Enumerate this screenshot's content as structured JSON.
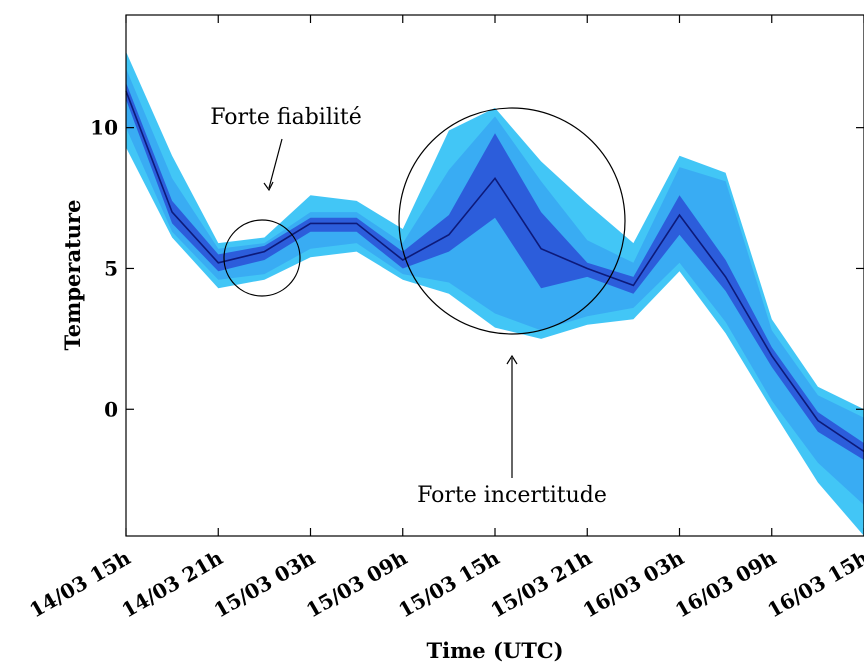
{
  "chart_data": {
    "type": "line",
    "title": "",
    "xlabel": "Time (UTC)",
    "ylabel": "Temperature",
    "categories": [
      "14/03 15h",
      "14/03 18h",
      "14/03 21h",
      "15/03 00h",
      "15/03 03h",
      "15/03 06h",
      "15/03 09h",
      "15/03 12h",
      "15/03 15h",
      "15/03 18h",
      "15/03 21h",
      "16/03 00h",
      "16/03 03h",
      "16/03 06h",
      "16/03 09h",
      "16/03 12h",
      "16/03 15h"
    ],
    "x_tick_labels": [
      "14/03 15h",
      "14/03 21h",
      "15/03 03h",
      "15/03 09h",
      "15/03 15h",
      "15/03 21h",
      "16/03 03h",
      "16/03 09h",
      "16/03 15h"
    ],
    "y_ticks": [
      0,
      5,
      10
    ],
    "ylim": [
      -4.5,
      14
    ],
    "grid": false,
    "series": [
      {
        "role": "mean",
        "values": [
          11.3,
          7.0,
          5.2,
          5.6,
          6.6,
          6.6,
          5.3,
          6.2,
          8.2,
          5.7,
          5.0,
          4.4,
          6.9,
          4.7,
          1.9,
          -0.4,
          -1.5
        ]
      },
      {
        "role": "core_upper",
        "values": [
          11.6,
          7.4,
          5.5,
          5.8,
          6.8,
          6.8,
          5.6,
          6.9,
          9.8,
          7.0,
          5.2,
          4.7,
          7.6,
          5.3,
          2.2,
          -0.1,
          -1.2
        ]
      },
      {
        "role": "core_lower",
        "values": [
          11.0,
          6.6,
          4.9,
          5.3,
          6.3,
          6.3,
          5.0,
          5.6,
          6.8,
          4.3,
          4.7,
          4.1,
          6.2,
          4.2,
          1.5,
          -0.8,
          -1.8
        ]
      },
      {
        "role": "mid_upper",
        "values": [
          12.1,
          8.2,
          5.7,
          5.9,
          7.0,
          7.0,
          5.9,
          8.5,
          10.4,
          8.1,
          6.0,
          5.2,
          8.6,
          8.1,
          2.8,
          0.5,
          -0.3
        ]
      },
      {
        "role": "mid_lower",
        "values": [
          10.0,
          6.3,
          4.6,
          4.8,
          5.7,
          5.9,
          4.8,
          4.5,
          3.4,
          2.8,
          3.3,
          3.6,
          5.2,
          3.1,
          0.3,
          -1.9,
          -3.4
        ]
      },
      {
        "role": "env_upper",
        "values": [
          12.7,
          9.0,
          5.9,
          6.1,
          7.6,
          7.4,
          6.4,
          9.9,
          10.7,
          8.8,
          7.3,
          5.9,
          9.0,
          8.4,
          3.2,
          0.8,
          0.0
        ]
      },
      {
        "role": "env_lower",
        "values": [
          9.3,
          6.1,
          4.3,
          4.6,
          5.4,
          5.6,
          4.6,
          4.1,
          2.9,
          2.5,
          3.0,
          3.2,
          4.9,
          2.7,
          0.0,
          -2.6,
          -4.5
        ]
      }
    ],
    "annotations": [
      {
        "text": "Forte fiabilité",
        "x": 5.2,
        "y": 5.3,
        "text_x": 5.7,
        "text_y": 10.5,
        "circle_data_radius_hours": 2.4,
        "circle_at": "15/03 01h"
      },
      {
        "text": "Forte incertitude",
        "x": 5.7,
        "y": 5.8,
        "text_x": 5.6,
        "text_y": -3.2,
        "circle_data_radius_hours": 6.0,
        "circle_at": "15/03 16h"
      }
    ],
    "colors": {
      "envelope": "#38c3f5",
      "mid_band": "#2f8cf0",
      "core_band": "#2a4fd6",
      "mean_line": "#0d1a7a"
    }
  }
}
